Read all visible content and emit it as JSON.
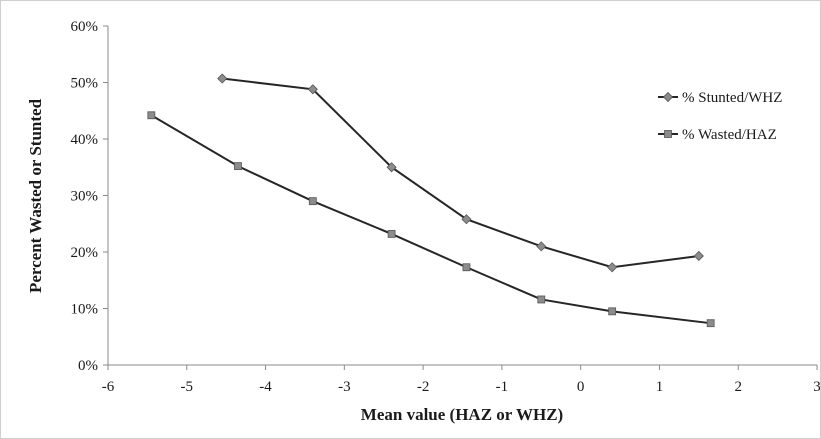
{
  "chart_data": {
    "type": "line",
    "title": "",
    "xlabel": "Mean value (HAZ or WHZ)",
    "ylabel": "Percent Wasted or Stunted",
    "xlim": [
      -6,
      3
    ],
    "ylim": [
      0,
      60
    ],
    "x_ticks": [
      -6,
      -5,
      -4,
      -3,
      -2,
      -1,
      0,
      1,
      2,
      3
    ],
    "x_tick_labels": [
      "-6",
      "-5",
      "-4",
      "-3",
      "-2",
      "-1",
      "0",
      "1",
      "2",
      "3"
    ],
    "y_ticks": [
      0,
      10,
      20,
      30,
      40,
      50,
      60
    ],
    "y_tick_labels": [
      "0%",
      "10%",
      "20%",
      "30%",
      "40%",
      "50%",
      "60%"
    ],
    "grid": false,
    "legend_position": "right",
    "series": [
      {
        "name": "% Stunted/WHZ",
        "marker": "diamond",
        "color": "#262626",
        "marker_fill": "#8c8c8c",
        "x": [
          -4.55,
          -3.4,
          -2.4,
          -1.45,
          -0.5,
          0.4,
          1.5
        ],
        "y": [
          50.7,
          48.8,
          35.0,
          25.8,
          21.0,
          17.3,
          19.3
        ]
      },
      {
        "name": "% Wasted/HAZ",
        "marker": "square",
        "color": "#262626",
        "marker_fill": "#8c8c8c",
        "x": [
          -5.45,
          -4.35,
          -3.4,
          -2.4,
          -1.45,
          -0.5,
          0.4,
          1.65
        ],
        "y": [
          44.2,
          35.2,
          29.0,
          23.2,
          17.3,
          11.6,
          9.5,
          7.4
        ]
      }
    ]
  }
}
